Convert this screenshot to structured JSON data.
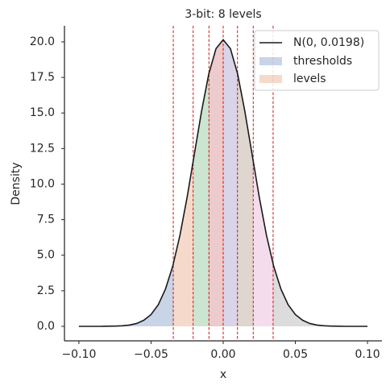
{
  "chart_data": {
    "type": "line",
    "title": "3-bit: 8 levels",
    "xlabel": "x",
    "ylabel": "Density",
    "x": [
      -0.1,
      -0.095,
      -0.09,
      -0.085,
      -0.08,
      -0.075,
      -0.07,
      -0.065,
      -0.06,
      -0.055,
      -0.05,
      -0.045,
      -0.04,
      -0.035,
      -0.03,
      -0.025,
      -0.02,
      -0.015,
      -0.01,
      -0.005,
      0,
      0.005,
      0.01,
      0.015,
      0.02,
      0.025,
      0.03,
      0.035,
      0.04,
      0.045,
      0.05,
      0.055,
      0.06,
      0.065,
      0.07,
      0.075,
      0.08,
      0.085,
      0.09,
      0.095,
      0.1
    ],
    "series": [
      {
        "name": "N(0, 0.0198)",
        "color": "#1a1a1a",
        "values": [
          0,
          0,
          0,
          0,
          0.01,
          0.02,
          0.04,
          0.09,
          0.2,
          0.43,
          0.83,
          1.52,
          2.62,
          4.22,
          6.39,
          9.08,
          12.1,
          15.12,
          17.74,
          19.52,
          20.15,
          19.52,
          17.74,
          15.12,
          12.1,
          9.08,
          6.39,
          4.22,
          2.62,
          1.52,
          0.83,
          0.43,
          0.2,
          0.09,
          0.04,
          0.02,
          0.01,
          0,
          0,
          0,
          0
        ]
      }
    ],
    "thresholds": [
      -0.0346,
      -0.0208,
      -0.0099,
      0,
      0.0099,
      0.0208,
      0.0346
    ],
    "threshold_color": "#cc0000",
    "region_colors": [
      "#4c72b0",
      "#dd8452",
      "#55a868",
      "#c44e52",
      "#8172b3",
      "#937860",
      "#da8bc3",
      "#8c8c8c"
    ],
    "legend_labels": [
      "thresholds",
      "levels"
    ],
    "xlim": [
      -0.11,
      0.11
    ],
    "ylim": [
      -1.02,
      21.13
    ],
    "xticks": [
      {
        "value": -0.1,
        "label": "−0.10"
      },
      {
        "value": -0.05,
        "label": "−0.05"
      },
      {
        "value": 0,
        "label": "0.00"
      },
      {
        "value": 0.05,
        "label": "0.05"
      },
      {
        "value": 0.1,
        "label": "0.10"
      }
    ],
    "yticks": [
      {
        "value": 0,
        "label": "0.0"
      },
      2.5,
      {
        "value": 5,
        "label": "5.0"
      },
      7.5,
      {
        "value": 10,
        "label": "10.0"
      },
      12.5,
      {
        "value": 15,
        "label": "15.0"
      },
      17.5,
      {
        "value": 20,
        "label": "20.0"
      }
    ],
    "grid": false
  }
}
